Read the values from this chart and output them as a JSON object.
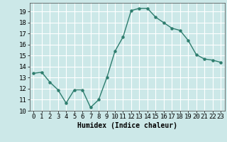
{
  "x": [
    0,
    1,
    2,
    3,
    4,
    5,
    6,
    7,
    8,
    9,
    10,
    11,
    12,
    13,
    14,
    15,
    16,
    17,
    18,
    19,
    20,
    21,
    22,
    23
  ],
  "y": [
    13.4,
    13.5,
    12.6,
    11.9,
    10.7,
    11.9,
    11.9,
    10.3,
    11.0,
    13.0,
    15.4,
    16.7,
    19.1,
    19.3,
    19.3,
    18.5,
    18.0,
    17.5,
    17.3,
    16.4,
    15.1,
    14.7,
    14.6,
    14.4
  ],
  "line_color": "#2e7d6e",
  "marker": "o",
  "markersize": 2.2,
  "linewidth": 1.0,
  "background_color": "#cce8e8",
  "grid_color": "#ffffff",
  "xlabel": "Humidex (Indice chaleur)",
  "xlabel_fontsize": 7,
  "tick_fontsize": 6.5,
  "ylim": [
    10,
    19.8
  ],
  "xlim": [
    -0.5,
    23.5
  ],
  "yticks": [
    10,
    11,
    12,
    13,
    14,
    15,
    16,
    17,
    18,
    19
  ],
  "xticks": [
    0,
    1,
    2,
    3,
    4,
    5,
    6,
    7,
    8,
    9,
    10,
    11,
    12,
    13,
    14,
    15,
    16,
    17,
    18,
    19,
    20,
    21,
    22,
    23
  ],
  "xtick_labels": [
    "0",
    "1",
    "2",
    "3",
    "4",
    "5",
    "6",
    "7",
    "8",
    "9",
    "10",
    "11",
    "12",
    "13",
    "14",
    "15",
    "16",
    "17",
    "18",
    "19",
    "20",
    "21",
    "22",
    "23"
  ]
}
